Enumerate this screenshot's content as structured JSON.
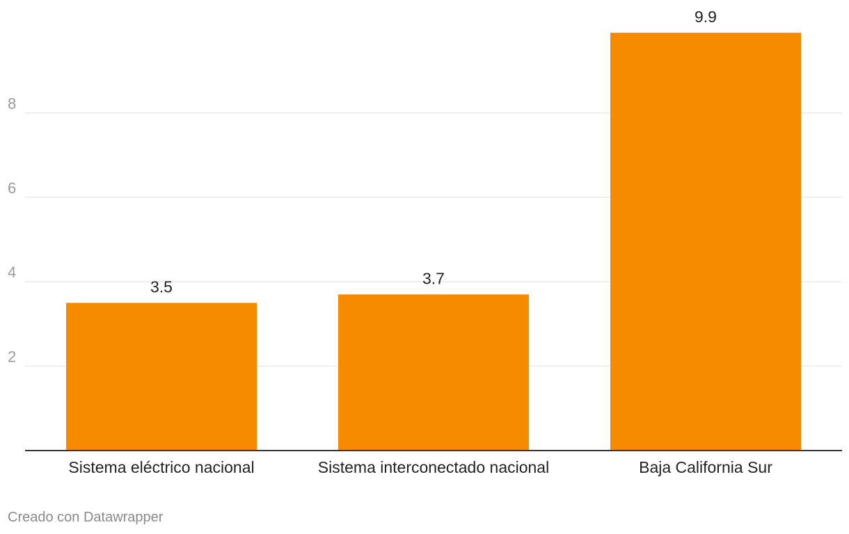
{
  "chart_data": {
    "type": "bar",
    "title": "",
    "xlabel": "",
    "ylabel": "",
    "categories": [
      "Sistema eléctrico nacional",
      "Sistema interconectado nacional",
      "Baja California Sur"
    ],
    "values": [
      3.5,
      3.7,
      9.9
    ],
    "value_labels": [
      "3.5",
      "3.7",
      "9.9"
    ],
    "ylim": [
      0,
      10
    ],
    "yticks": [
      2,
      4,
      6,
      8
    ],
    "ytick_labels": [
      "2",
      "4",
      "6",
      "8"
    ],
    "grid": true,
    "bar_color": "#f78b00"
  },
  "footer": {
    "credit": "Creado con Datawrapper"
  }
}
